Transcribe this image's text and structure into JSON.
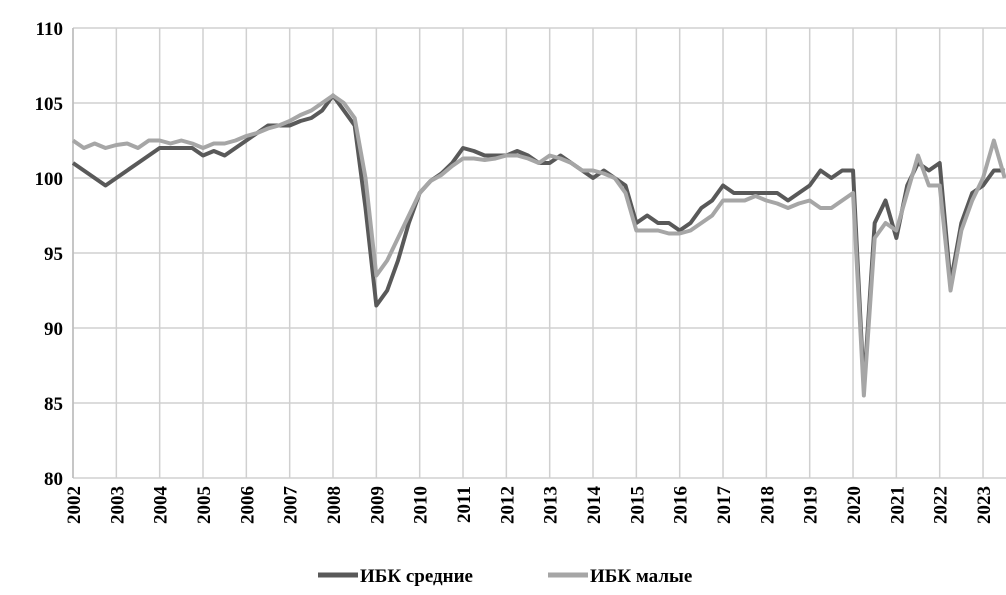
{
  "chart_data": {
    "type": "line",
    "x": [
      2002,
      2002.25,
      2002.5,
      2002.75,
      2003,
      2003.25,
      2003.5,
      2003.75,
      2004,
      2004.25,
      2004.5,
      2004.75,
      2005,
      2005.25,
      2005.5,
      2005.75,
      2006,
      2006.25,
      2006.5,
      2006.75,
      2007,
      2007.25,
      2007.5,
      2007.75,
      2008,
      2008.25,
      2008.5,
      2008.75,
      2009,
      2009.25,
      2009.5,
      2009.75,
      2010,
      2010.25,
      2010.5,
      2010.75,
      2011,
      2011.25,
      2011.5,
      2011.75,
      2012,
      2012.25,
      2012.5,
      2012.75,
      2013,
      2013.25,
      2013.5,
      2013.75,
      2014,
      2014.25,
      2014.5,
      2014.75,
      2015,
      2015.25,
      2015.5,
      2015.75,
      2016,
      2016.25,
      2016.5,
      2016.75,
      2017,
      2017.25,
      2017.5,
      2017.75,
      2018,
      2018.25,
      2018.5,
      2018.75,
      2019,
      2019.25,
      2019.5,
      2019.75,
      2020,
      2020.25,
      2020.5,
      2020.75,
      2021,
      2021.25,
      2021.5,
      2021.75,
      2022,
      2022.25,
      2022.5,
      2022.75,
      2023,
      2023.25,
      2023.5
    ],
    "series": [
      {
        "name": "ИБК средние",
        "color": "#595959",
        "values": [
          101,
          100.5,
          100,
          99.5,
          100,
          100.5,
          101,
          101.5,
          102,
          102,
          102,
          102,
          101.5,
          101.8,
          101.5,
          102,
          102.5,
          103,
          103.5,
          103.5,
          103.5,
          103.8,
          104,
          104.5,
          105.5,
          104.5,
          103.5,
          98,
          91.5,
          92.5,
          94.5,
          97,
          99,
          99.8,
          100.3,
          101,
          102,
          101.8,
          101.5,
          101.5,
          101.5,
          101.8,
          101.5,
          101,
          101,
          101.5,
          101,
          100.5,
          100,
          100.5,
          100,
          99.5,
          97,
          97.5,
          97,
          97,
          96.5,
          97,
          98,
          98.5,
          99.5,
          99,
          99,
          99,
          99,
          99,
          98.5,
          99,
          99.5,
          100.5,
          100,
          100.5,
          100.5,
          86,
          97,
          98.5,
          96,
          99.5,
          101,
          100.5,
          101,
          93,
          97,
          99,
          99.5,
          100.5,
          100.5
        ]
      },
      {
        "name": "ИБК малые",
        "color": "#a6a6a6",
        "values": [
          102.5,
          102,
          102.3,
          102,
          102.2,
          102.3,
          102,
          102.5,
          102.5,
          102.3,
          102.5,
          102.3,
          102,
          102.3,
          102.3,
          102.5,
          102.8,
          103,
          103.3,
          103.5,
          103.8,
          104.2,
          104.5,
          105,
          105.5,
          105,
          104,
          100,
          93.5,
          94.5,
          96,
          97.5,
          99,
          99.8,
          100.2,
          100.8,
          101.3,
          101.3,
          101.2,
          101.3,
          101.5,
          101.5,
          101.3,
          101,
          101.5,
          101.3,
          101,
          100.5,
          100.5,
          100.3,
          100,
          99,
          96.5,
          96.5,
          96.5,
          96.3,
          96.3,
          96.5,
          97,
          97.5,
          98.5,
          98.5,
          98.5,
          98.8,
          98.5,
          98.3,
          98,
          98.3,
          98.5,
          98,
          98,
          98.5,
          99,
          85.5,
          96,
          97,
          96.5,
          99,
          101.5,
          99.5,
          99.5,
          92.5,
          96.5,
          98.5,
          100,
          102.5,
          100
        ]
      }
    ],
    "xlim": [
      2002,
      2023.53
    ],
    "xticks": [
      2002,
      2003,
      2004,
      2005,
      2006,
      2007,
      2008,
      2009,
      2010,
      2011,
      2012,
      2013,
      2014,
      2015,
      2016,
      2017,
      2018,
      2019,
      2020,
      2021,
      2022,
      2023
    ],
    "ylim": [
      80,
      110
    ],
    "yticks": [
      80,
      85,
      90,
      95,
      100,
      105,
      110
    ],
    "grid": true,
    "legend": "bottom"
  }
}
